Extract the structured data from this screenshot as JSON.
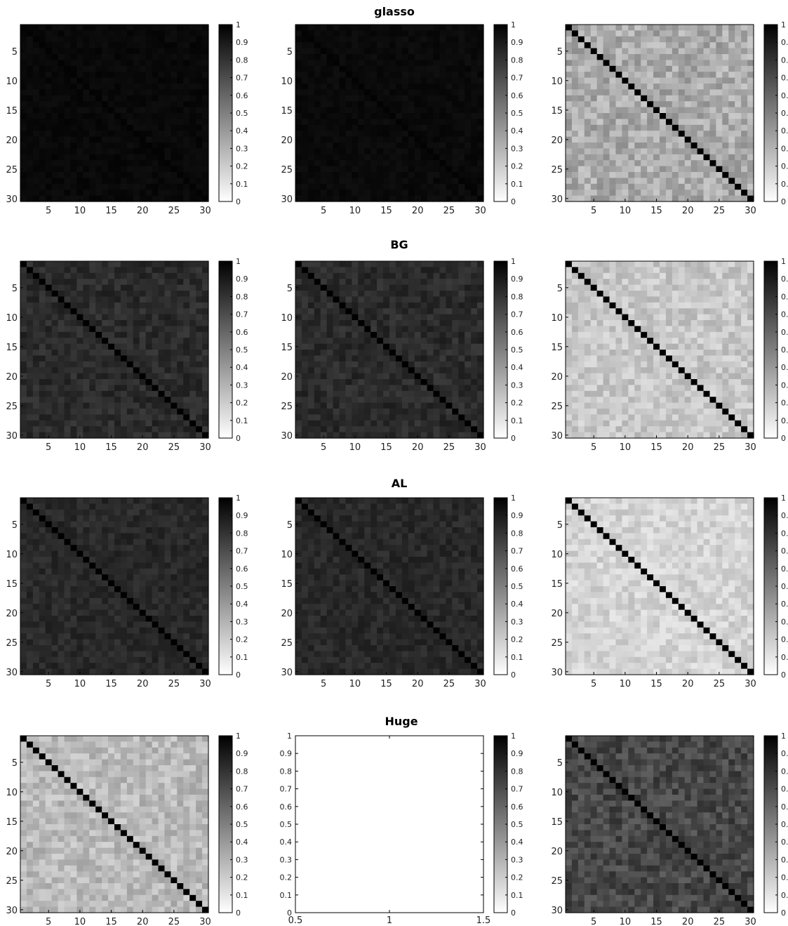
{
  "chart_data": {
    "type": "heatmap",
    "matrix_size": 30,
    "row_titles": [
      "glasso",
      "BG",
      "AL",
      "Huge"
    ],
    "heatmap_ticks": [
      "5",
      "10",
      "15",
      "20",
      "25",
      "30"
    ],
    "colorbar": {
      "colormap": "gray-reversed",
      "range": [
        0,
        1
      ],
      "ticks": [
        "0",
        "0.1",
        "0.2",
        "0.3",
        "0.4",
        "0.5",
        "0.6",
        "0.7",
        "0.8",
        "0.9",
        "1"
      ]
    },
    "empty_panel": {
      "xticks": [
        "0.5",
        "1",
        "1.5"
      ],
      "xlim": [
        0.5,
        1.5
      ],
      "yticks": [
        "0",
        "0.1",
        "0.2",
        "0.3",
        "0.4",
        "0.5",
        "0.6",
        "0.7",
        "0.8",
        "0.9",
        "1"
      ],
      "ylim": [
        0,
        1
      ]
    },
    "panels": [
      {
        "row": 0,
        "col": 0,
        "kind": "heatmap",
        "diag_value": 0.99,
        "offdiag_mean": 0.965,
        "offdiag_spread": 0.02
      },
      {
        "row": 0,
        "col": 1,
        "kind": "heatmap",
        "diag_value": 0.99,
        "offdiag_mean": 0.96,
        "offdiag_spread": 0.02
      },
      {
        "row": 0,
        "col": 2,
        "kind": "heatmap",
        "diag_value": 1.0,
        "offdiag_mean": 0.33,
        "offdiag_spread": 0.12
      },
      {
        "row": 1,
        "col": 0,
        "kind": "heatmap",
        "diag_value": 1.0,
        "offdiag_mean": 0.83,
        "offdiag_spread": 0.06
      },
      {
        "row": 1,
        "col": 1,
        "kind": "heatmap",
        "diag_value": 1.0,
        "offdiag_mean": 0.83,
        "offdiag_spread": 0.06
      },
      {
        "row": 1,
        "col": 2,
        "kind": "heatmap",
        "diag_value": 1.0,
        "offdiag_mean": 0.22,
        "offdiag_spread": 0.09
      },
      {
        "row": 2,
        "col": 0,
        "kind": "heatmap",
        "diag_value": 1.0,
        "offdiag_mean": 0.84,
        "offdiag_spread": 0.05
      },
      {
        "row": 2,
        "col": 1,
        "kind": "heatmap",
        "diag_value": 1.0,
        "offdiag_mean": 0.84,
        "offdiag_spread": 0.05
      },
      {
        "row": 2,
        "col": 2,
        "kind": "heatmap",
        "diag_value": 1.0,
        "offdiag_mean": 0.17,
        "offdiag_spread": 0.08
      },
      {
        "row": 3,
        "col": 0,
        "kind": "heatmap",
        "diag_value": 1.0,
        "offdiag_mean": 0.27,
        "offdiag_spread": 0.1
      },
      {
        "row": 3,
        "col": 1,
        "kind": "empty"
      },
      {
        "row": 3,
        "col": 2,
        "kind": "heatmap",
        "diag_value": 1.0,
        "offdiag_mean": 0.72,
        "offdiag_spread": 0.1
      }
    ]
  }
}
